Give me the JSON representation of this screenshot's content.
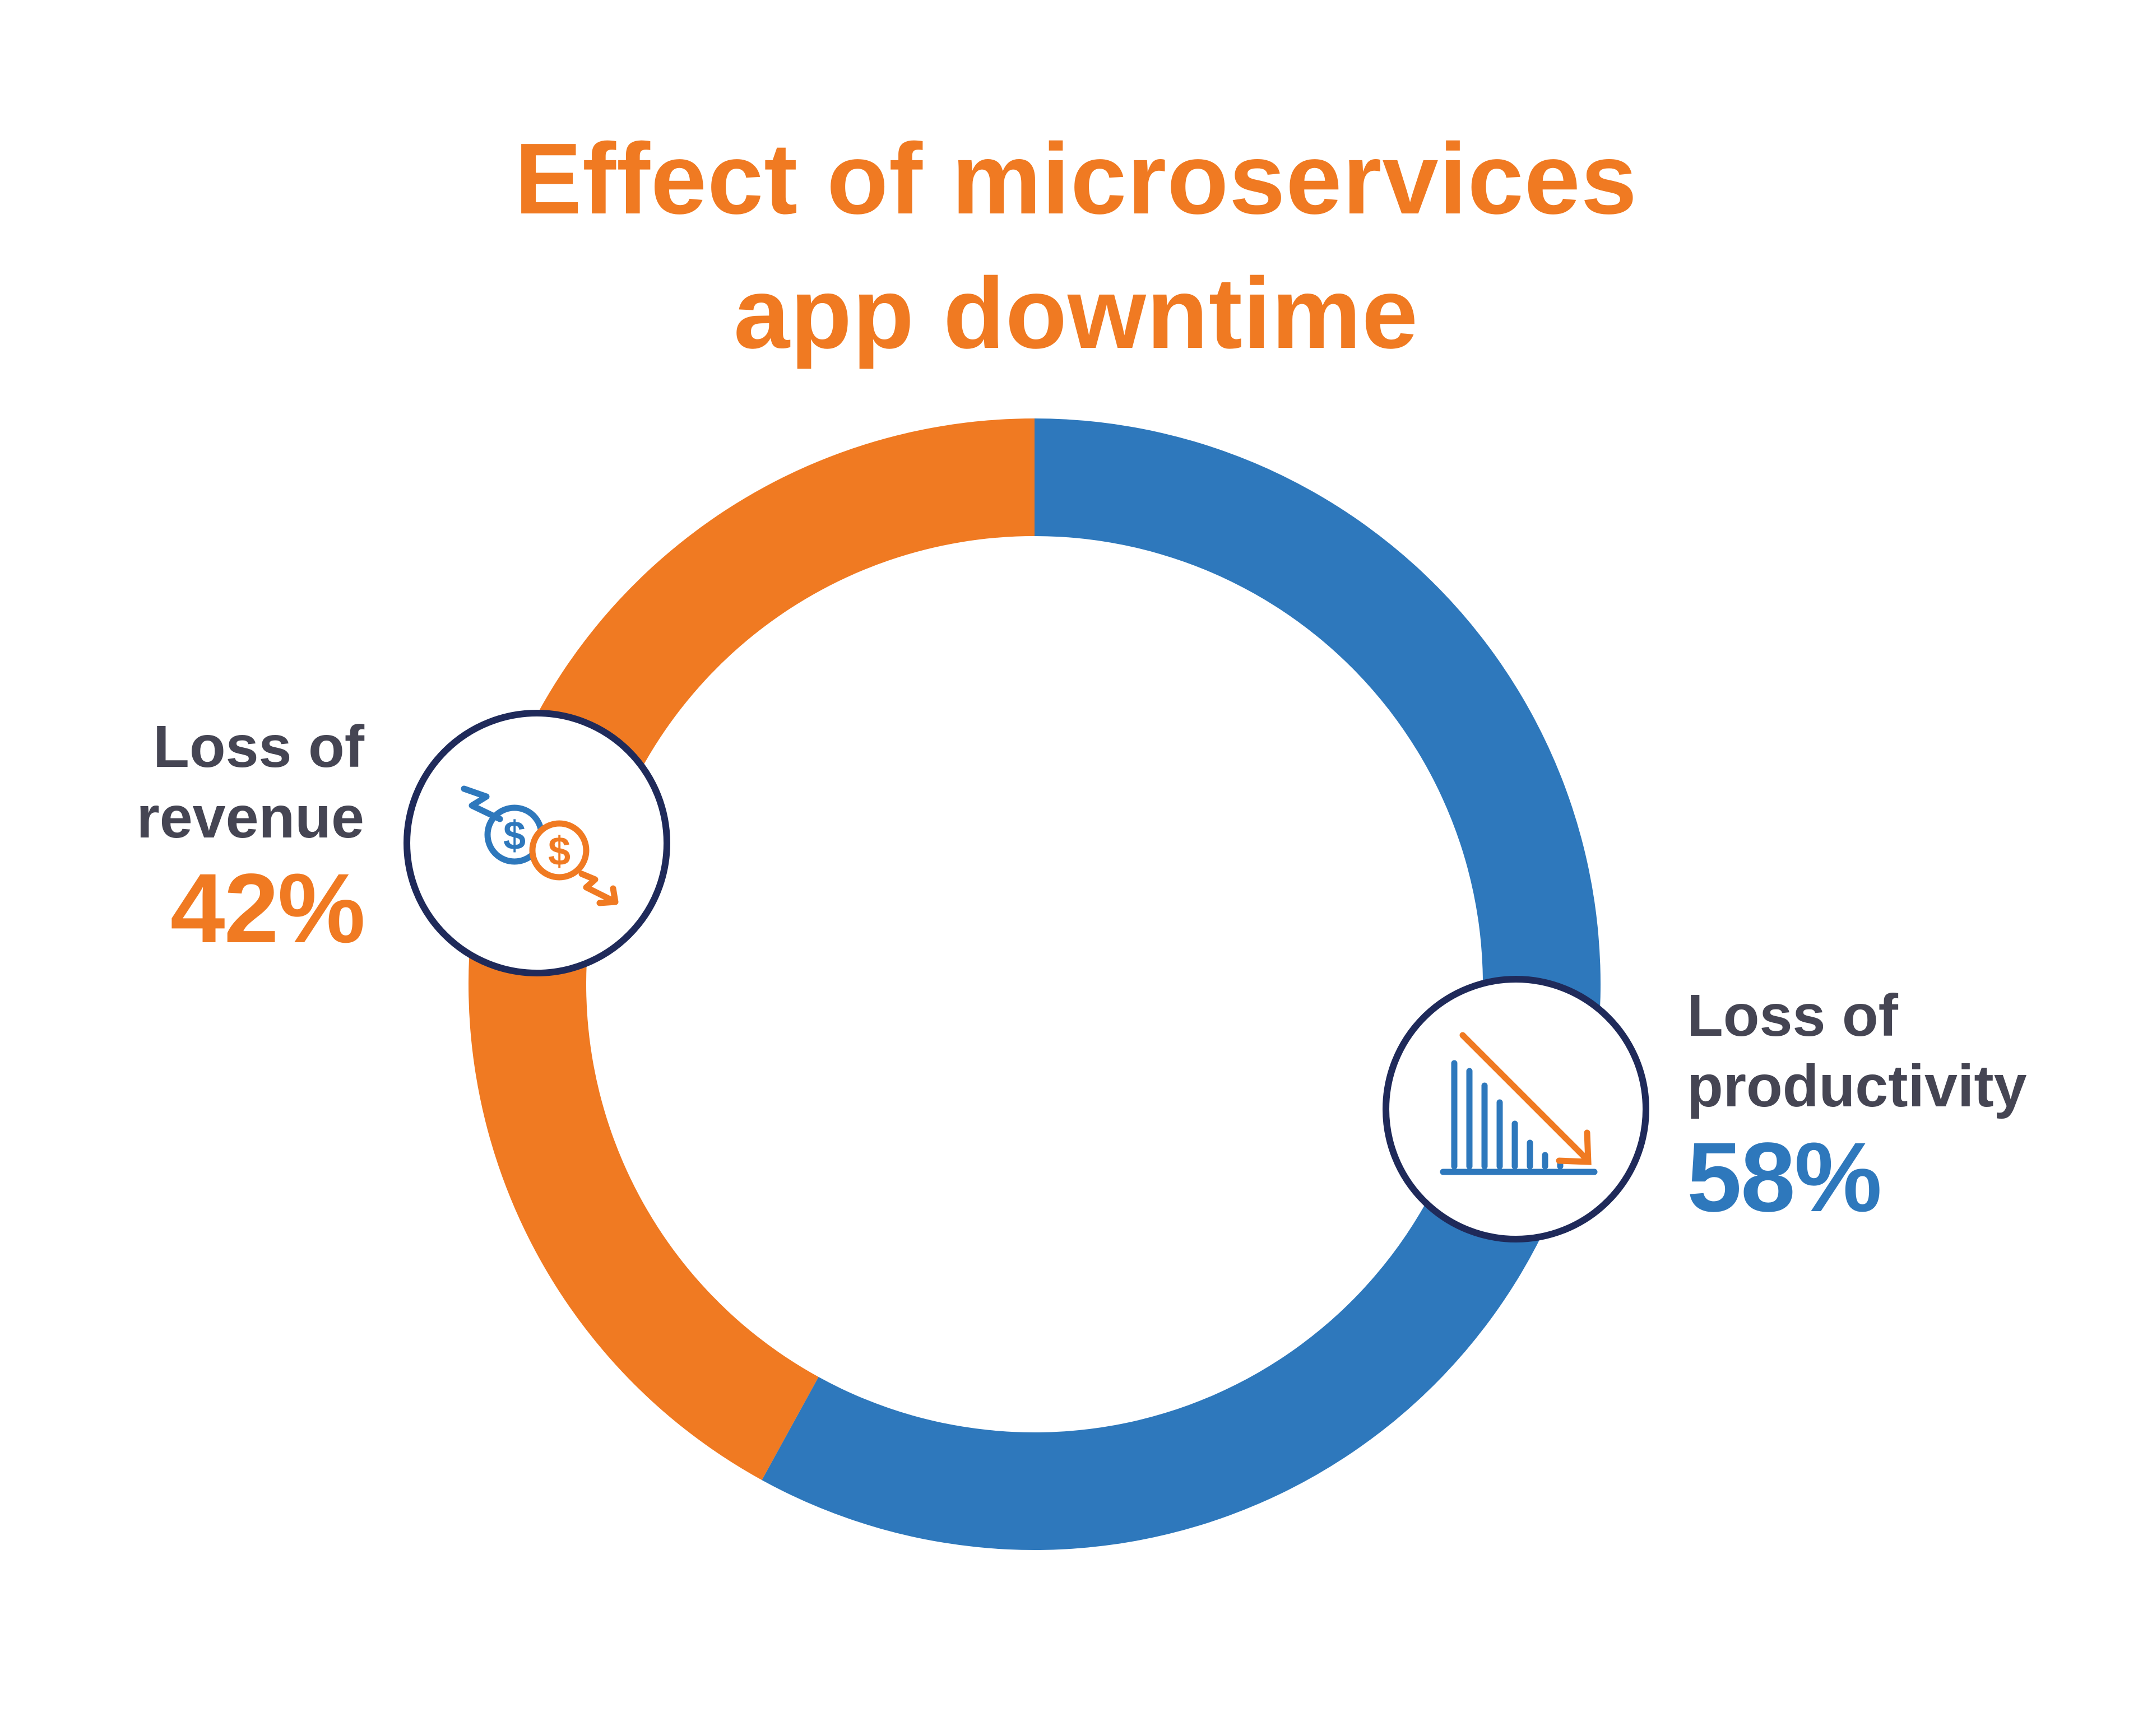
{
  "colors": {
    "orange": "#F07A22",
    "blue": "#2E78BC",
    "text_dark": "#454553",
    "badge_border": "#1F2A5A"
  },
  "chart_data": {
    "type": "pie",
    "variant": "donut",
    "title": [
      "Effect of microservices",
      "app downtime"
    ],
    "slices": [
      {
        "name": "Loss of productivity",
        "name_lines": [
          "Loss of",
          "productivity"
        ],
        "value": 58,
        "value_label": "58%",
        "color": "#2E78BC",
        "icon": "declining-bar-chart-icon"
      },
      {
        "name": "Loss of revenue",
        "name_lines": [
          "Loss of",
          "revenue"
        ],
        "value": 42,
        "value_label": "42%",
        "color": "#F07A22",
        "icon": "falling-dollar-coins-icon"
      }
    ],
    "start_angle": "12 o'clock",
    "direction": "clockwise",
    "legend": "none"
  }
}
